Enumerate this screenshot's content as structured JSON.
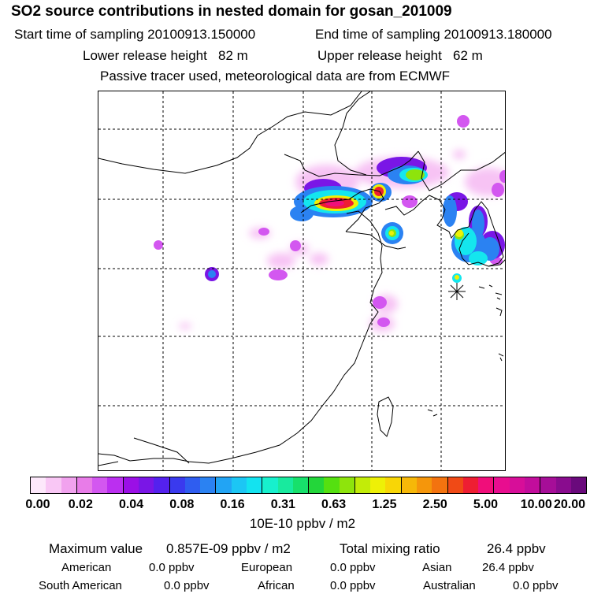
{
  "header": {
    "title": "SO2 source contributions in nested domain for gosan_201009",
    "start_label": "Start time of sampling 20100913.150000",
    "end_label": "End time of sampling 20100913.180000",
    "lower_label": "Lower release height",
    "lower_value": "82 m",
    "upper_label": "Upper release height",
    "upper_value": "62 m",
    "note": "Passive tracer used, meteorological data are from ECMWF"
  },
  "colorbar": {
    "colors": [
      "#fde8fb",
      "#f9c7f5",
      "#f1a2ee",
      "#e87ce8",
      "#d357f0",
      "#bb2ff0",
      "#9b0fe6",
      "#7a16e6",
      "#5421ee",
      "#3a3aee",
      "#2f5df0",
      "#2b82f2",
      "#22a4f4",
      "#1cc6f4",
      "#13e3f0",
      "#17f0cd",
      "#18ea9e",
      "#17e06b",
      "#23d63a",
      "#55e010",
      "#8ee40c",
      "#c2ec08",
      "#eef006",
      "#f8d606",
      "#f6b808",
      "#f5960b",
      "#f3730f",
      "#f04a16",
      "#ee1e32",
      "#f00e7a",
      "#e80d8f",
      "#d70e99",
      "#c20d9c",
      "#a60e98",
      "#890c8e",
      "#6a0a7c"
    ],
    "tick_labels": [
      "0.00",
      "0.02",
      "0.04",
      "0.08",
      "0.16",
      "0.31",
      "0.63",
      "1.25",
      "2.50",
      "5.00",
      "10.00",
      "20.00"
    ],
    "units": "10E-10 ppbv / m2"
  },
  "stats": {
    "max_label": "Maximum value",
    "max_value": "0.857E-09 ppbv / m2",
    "total_label": "Total mixing ratio",
    "total_value": "26.4 ppbv",
    "american_label": "American",
    "american_value": "0.0 ppbv",
    "european_label": "European",
    "european_value": "0.0 ppbv",
    "asian_label": "Asian",
    "asian_value": "26.4 ppbv",
    "south_american_label": "South American",
    "south_american_value": "0.0 ppbv",
    "african_label": "African",
    "african_value": "0.0 ppbv",
    "australian_label": "Australian",
    "australian_value": "0.0 ppbv"
  }
}
